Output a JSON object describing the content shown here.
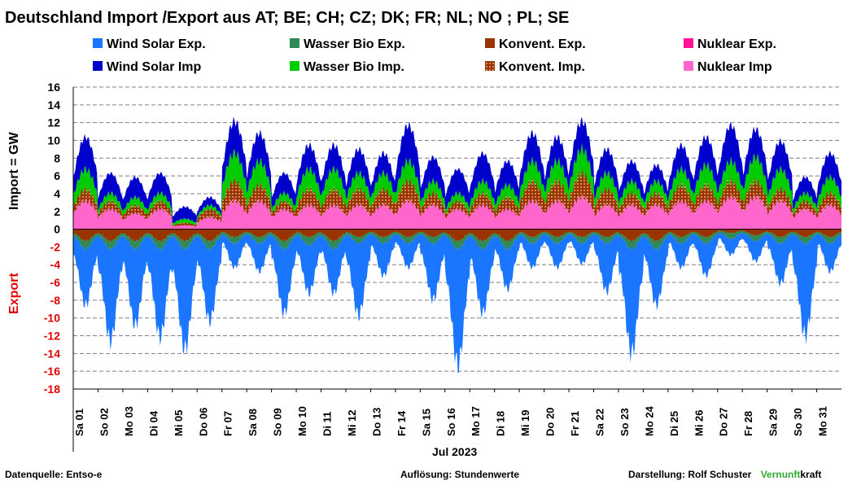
{
  "chart_data": {
    "type": "area",
    "title": "Deutschland  Import /Export  aus AT;  BE;  CH;  CZ;  DK;  FR;  NL;  NO ;  PL;  SE",
    "ylabel_import": "Import    =  GW",
    "ylabel_export": "Export",
    "xlabel": "Jul 2023",
    "ylim": [
      -18,
      16
    ],
    "yticks": [
      16,
      14,
      12,
      10,
      8,
      6,
      4,
      2,
      0,
      -2,
      -4,
      -6,
      -8,
      -10,
      -12,
      -14,
      -16,
      -18
    ],
    "grid": "horizontal-dashed",
    "x_categories": [
      "Sa 01",
      "So 02",
      "Mo 03",
      "Di 04",
      "Mi 05",
      "Do 06",
      "Fr 07",
      "Sa 08",
      "So 09",
      "Mo 10",
      "Di 11",
      "Mi 12",
      "Do 13",
      "Fr 14",
      "Sa 15",
      "So 16",
      "Mo 17",
      "Di 18",
      "Mi 19",
      "Do 20",
      "Fr 21",
      "Sa 22",
      "So 23",
      "Mo 24",
      "Di 25",
      "Mi 26",
      "Do 27",
      "Fr 28",
      "Sa 29",
      "So 30",
      "Mo 31"
    ],
    "legend": [
      {
        "name": "Wind Solar Exp.",
        "color": "#1a75ff",
        "pattern": "solid"
      },
      {
        "name": "Wasser Bio Exp.",
        "color": "#2e8b57",
        "pattern": "solid"
      },
      {
        "name": "Konvent. Exp.",
        "color": "#993300",
        "pattern": "solid"
      },
      {
        "name": "Nuklear Exp.",
        "color": "#ff1493",
        "pattern": "solid"
      },
      {
        "name": "Wind Solar Imp",
        "color": "#0000cc",
        "pattern": "solid"
      },
      {
        "name": "Wasser Bio Imp.",
        "color": "#00cc00",
        "pattern": "solid"
      },
      {
        "name": "Konvent. Imp.",
        "color": "#993300",
        "pattern": "dotted"
      },
      {
        "name": "Nuklear Imp",
        "color": "#ff66cc",
        "pattern": "solid"
      }
    ],
    "series": [
      {
        "name": "Nuklear Imp",
        "sign": "import",
        "stack_order": 1,
        "values": [
          3.5,
          2.5,
          2.0,
          2.5,
          0.5,
          1.5,
          3.5,
          3.5,
          2.5,
          3.0,
          3.0,
          3.0,
          3.0,
          3.5,
          3.0,
          2.5,
          3.0,
          2.5,
          3.5,
          3.5,
          4.0,
          3.0,
          3.0,
          3.0,
          3.5,
          3.5,
          4.0,
          4.0,
          3.5,
          2.5,
          3.0
        ]
      },
      {
        "name": "Konvent. Imp.",
        "sign": "import",
        "stack_order": 2,
        "values": [
          1.5,
          1.0,
          1.0,
          1.0,
          0.3,
          1.0,
          2.5,
          2.0,
          1.0,
          2.0,
          2.0,
          2.0,
          2.0,
          2.5,
          1.5,
          1.0,
          1.5,
          1.5,
          2.5,
          2.5,
          3.0,
          2.0,
          1.5,
          1.5,
          2.0,
          2.0,
          2.0,
          2.0,
          1.5,
          1.0,
          1.5
        ]
      },
      {
        "name": "Wasser Bio Imp.",
        "sign": "import",
        "stack_order": 3,
        "values": [
          2.5,
          1.0,
          1.0,
          1.0,
          0.5,
          0.5,
          3.5,
          3.0,
          1.0,
          2.5,
          2.5,
          2.0,
          2.0,
          2.5,
          1.5,
          1.0,
          1.5,
          1.5,
          2.5,
          2.5,
          3.0,
          2.0,
          1.5,
          1.5,
          2.0,
          2.5,
          2.5,
          3.0,
          2.5,
          1.0,
          2.0
        ]
      },
      {
        "name": "Wind Solar Imp",
        "sign": "import",
        "stack_order": 4,
        "values": [
          4.0,
          2.5,
          2.5,
          2.5,
          1.5,
          1.0,
          4.0,
          3.5,
          2.5,
          3.0,
          3.0,
          3.0,
          2.5,
          4.5,
          3.0,
          3.0,
          3.5,
          3.0,
          3.5,
          3.0,
          3.5,
          3.0,
          2.5,
          2.0,
          3.0,
          3.5,
          4.5,
          3.5,
          3.5,
          2.0,
          3.0
        ]
      },
      {
        "name": "Konvent. Exp.",
        "sign": "export",
        "stack_order": 1,
        "values": [
          1.5,
          1.5,
          1.5,
          1.5,
          1.5,
          1.5,
          1.0,
          1.0,
          1.5,
          1.0,
          1.5,
          1.0,
          1.0,
          1.0,
          1.0,
          1.5,
          1.5,
          1.5,
          1.0,
          1.0,
          1.0,
          1.0,
          1.5,
          1.5,
          1.0,
          1.0,
          0.5,
          0.8,
          1.0,
          1.0,
          1.0
        ]
      },
      {
        "name": "Wasser Bio Exp.",
        "sign": "export",
        "stack_order": 2,
        "values": [
          1.0,
          1.0,
          1.0,
          1.0,
          1.0,
          1.0,
          0.8,
          0.8,
          1.0,
          1.0,
          1.0,
          0.8,
          0.8,
          0.8,
          0.8,
          1.0,
          1.0,
          1.0,
          0.8,
          0.8,
          0.8,
          0.8,
          1.0,
          1.0,
          0.8,
          0.8,
          0.7,
          0.7,
          0.8,
          0.8,
          0.8
        ]
      },
      {
        "name": "Wind Solar Exp.",
        "sign": "export",
        "stack_order": 3,
        "values": [
          7.0,
          11.5,
          9.5,
          11.0,
          12.5,
          9.0,
          3.0,
          3.5,
          8.0,
          6.0,
          5.5,
          9.0,
          4.0,
          3.0,
          7.0,
          14.5,
          8.0,
          5.0,
          3.0,
          3.0,
          2.5,
          6.0,
          13.0,
          7.0,
          3.0,
          4.0,
          2.0,
          2.5,
          5.0,
          11.5,
          3.5
        ]
      },
      {
        "name": "Nuklear Exp.",
        "sign": "export",
        "stack_order": 0,
        "values": [
          0,
          0,
          0,
          0,
          0,
          0,
          0,
          0,
          0,
          0,
          0,
          0,
          0,
          0,
          0,
          0,
          0,
          0,
          0,
          0,
          0,
          0,
          0,
          0,
          0,
          0,
          0,
          0,
          0,
          0,
          0
        ]
      }
    ]
  },
  "footer": {
    "source": "Datenquelle: Entso-e",
    "resolution": "Auflösung: Stundenwerte",
    "credit_prefix": "Darstellung:  Rolf Schuster",
    "brand_green": "Vernunft",
    "brand_black": "kraft",
    "brand_color": "#33aa33"
  }
}
